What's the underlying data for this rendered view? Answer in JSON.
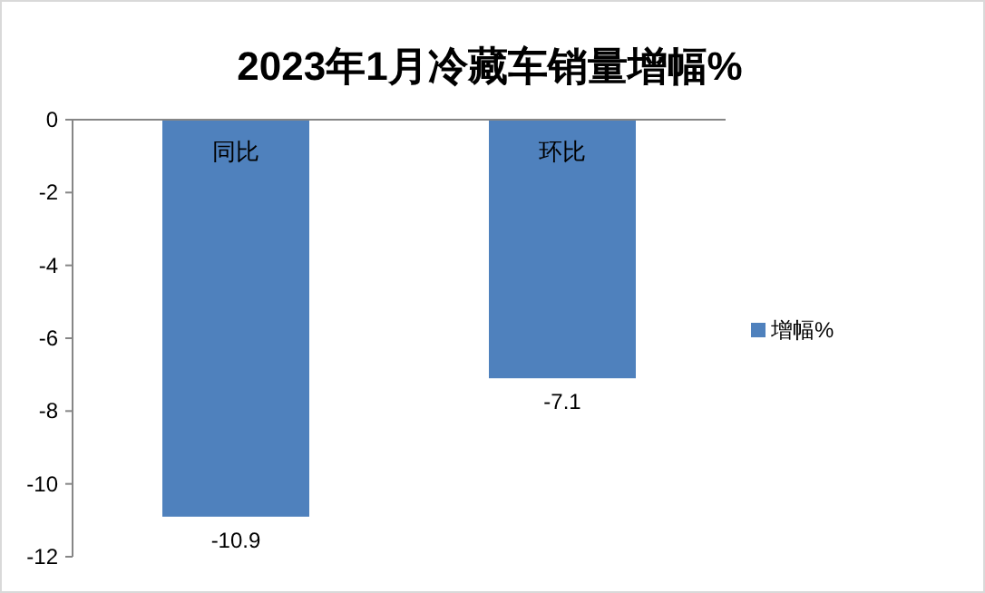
{
  "chart_data": {
    "type": "bar",
    "title": "2023年1月冷藏车销量增幅%",
    "categories": [
      "同比",
      "环比"
    ],
    "series": [
      {
        "name": "增幅%",
        "color": "#4f81bd",
        "values": [
          -10.9,
          -7.1
        ]
      }
    ],
    "ylim": [
      -12,
      0
    ],
    "yticks": [
      0,
      -2,
      -4,
      -6,
      -8,
      -10,
      -12
    ],
    "data_labels": true,
    "legend": "right",
    "grid": false
  }
}
